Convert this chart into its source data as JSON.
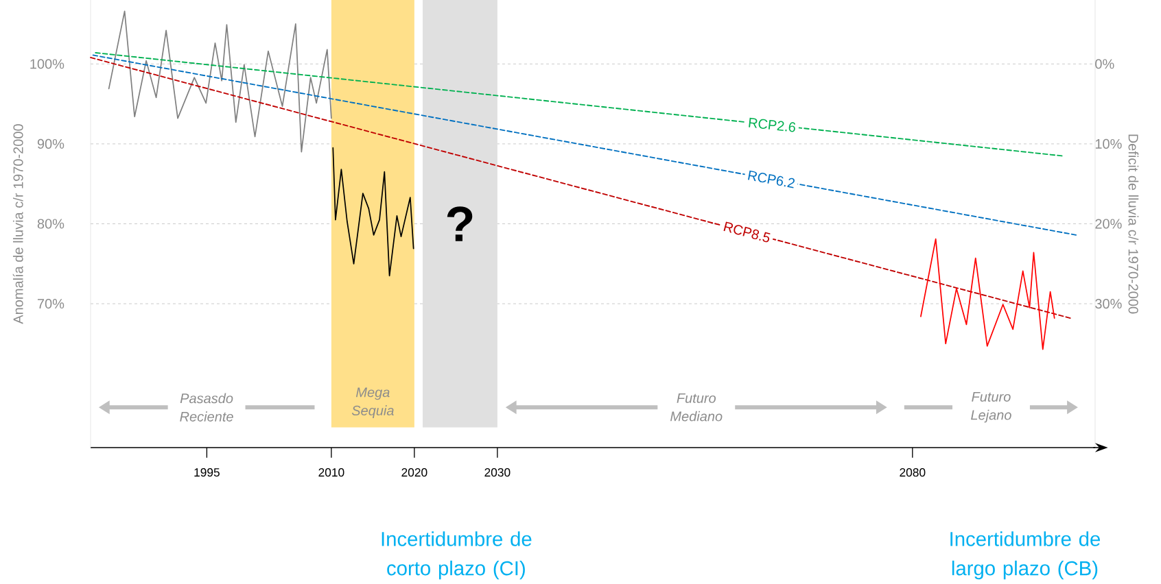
{
  "chart_data": {
    "type": "line",
    "xlabel": null,
    "ylabel": "Anomalía de lluvia c/r 1970-2000",
    "y2label": "Deficit de lluvia c/r 1970-2000",
    "xlim": [
      1981,
      2102
    ],
    "xticks": [
      1995,
      2010,
      2020,
      2030,
      2080
    ],
    "ylim": [
      52,
      108
    ],
    "yticks": [
      {
        "value": 70,
        "label": "70%"
      },
      {
        "value": 80,
        "label": "80%"
      },
      {
        "value": 90,
        "label": "90%"
      },
      {
        "value": 100,
        "label": "100%"
      }
    ],
    "y2lim": [
      48,
      -8
    ],
    "y2ticks": [
      {
        "value": 0,
        "label": "0%"
      },
      {
        "value": 10,
        "label": "10%"
      },
      {
        "value": 20,
        "label": "20%"
      },
      {
        "value": 30,
        "label": "30%"
      }
    ],
    "grid": "y",
    "marker": "none",
    "series": [
      {
        "color": "#808080",
        "line_style": "solid",
        "x": [
          1983.2,
          1985.1,
          1986.3,
          1987.7,
          1988.9,
          1990.1,
          1991.5,
          1993.5,
          1994.9,
          1996.0,
          1996.8,
          1997.4,
          1998.5,
          1999.5,
          2000.8,
          2002.4,
          2004.1,
          2005.7,
          2006.4,
          2007.5,
          2008.2,
          2009.5,
          2010.0
        ],
        "values": [
          96.9,
          106.6,
          93.4,
          100.4,
          95.8,
          104.2,
          93.2,
          98.3,
          95.1,
          102.6,
          97.9,
          104.9,
          92.7,
          99.9,
          90.9,
          101.6,
          94.7,
          105.0,
          89.0,
          98.3,
          95.1,
          101.8,
          93.2
        ]
      },
      {
        "color": "#000000",
        "line_style": "solid",
        "x": [
          2010.2,
          2010.5,
          2011.2,
          2011.9,
          2012.7,
          2013.8,
          2014.5,
          2015.1,
          2015.8,
          2016.4,
          2017.0,
          2017.9,
          2018.4,
          2019.5,
          2019.9
        ],
        "values": [
          89.5,
          80.5,
          86.8,
          80.3,
          75.0,
          83.8,
          81.9,
          78.6,
          80.5,
          86.5,
          73.5,
          81.0,
          78.4,
          83.3,
          76.9
        ]
      },
      {
        "name": "RCP2.6",
        "color": "#00b050",
        "line_style": "dashed",
        "x": [
          1981.6,
          2098.0
        ],
        "values": [
          101.4,
          88.5
        ]
      },
      {
        "name": "RCP6.2",
        "color": "#0070c0",
        "line_style": "dashed",
        "x": [
          1981.3,
          2099.7
        ],
        "values": [
          101.1,
          78.6
        ]
      },
      {
        "name": "RCP8.5",
        "color": "#c00000",
        "line_style": "dashed",
        "x": [
          1981.0,
          2099.0
        ],
        "values": [
          100.8,
          68.2
        ]
      },
      {
        "color": "#ff0000",
        "line_style": "solid",
        "x": [
          2081.0,
          2082.8,
          2084.0,
          2085.3,
          2086.5,
          2087.6,
          2089.0,
          2090.9,
          2092.1,
          2093.3,
          2094.1,
          2094.6,
          2095.7,
          2096.6,
          2097.1
        ],
        "values": [
          68.4,
          78.1,
          65.0,
          71.9,
          67.4,
          75.7,
          64.7,
          69.9,
          66.8,
          74.1,
          69.5,
          76.4,
          64.3,
          71.5,
          68.2
        ]
      }
    ],
    "bands": [
      {
        "axis": "x",
        "from": 2010,
        "to": 2020,
        "label": "Mega Sequia",
        "color": "#ffe08a"
      },
      {
        "axis": "x",
        "from": 2021,
        "to": 2030,
        "label": "?",
        "color": "#e0e0e0"
      }
    ],
    "annotations": [
      "Pasasdo Reciente",
      "Futuro Mediano",
      "Futuro Lejano",
      "Incertidumbre de corto plazo (CI)",
      "Incertidumbre de largo plazo (CB)"
    ]
  }
}
